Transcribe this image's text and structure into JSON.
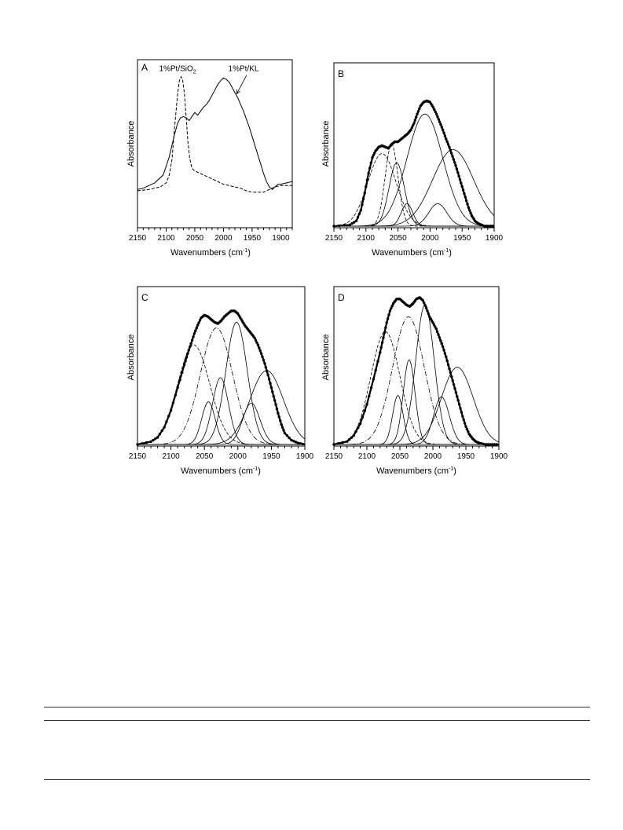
{
  "chart_data": [
    {
      "type": "line",
      "panel": "A",
      "xlabel": "Wavenumbers (cm",
      "xlabel_sup": "-1",
      "xlabel_end": ")",
      "ylabel": "Absorbance",
      "xlim": [
        2150,
        1880
      ],
      "xticks": [
        2150,
        2100,
        2050,
        2000,
        1950,
        1900
      ],
      "xticklabels": [
        "2150",
        "2100",
        "2050",
        "2000",
        "1950",
        "1900"
      ],
      "ylim": [
        0,
        1
      ],
      "annotations": [
        {
          "text": "1%Pt/SiO",
          "sub": "2",
          "x": 2080,
          "y": 1.02
        },
        {
          "text": "1%Pt/KL",
          "x": 1965,
          "y": 1.02,
          "arrow_to": [
            1977,
            0.86
          ]
        }
      ],
      "series": [
        {
          "style": "solid",
          "x": [
            2150,
            2140,
            2120,
            2105,
            2095,
            2085,
            2080,
            2075,
            2070,
            2065,
            2060,
            2055,
            2050,
            2045,
            2040,
            2035,
            2030,
            2025,
            2020,
            2015,
            2010,
            2005,
            2000,
            1995,
            1990,
            1985,
            1980,
            1975,
            1970,
            1965,
            1960,
            1955,
            1950,
            1945,
            1940,
            1935,
            1930,
            1925,
            1920,
            1915,
            1910,
            1905,
            1900,
            1890,
            1880
          ],
          "y": [
            0.14,
            0.15,
            0.19,
            0.25,
            0.38,
            0.56,
            0.64,
            0.68,
            0.69,
            0.68,
            0.66,
            0.69,
            0.72,
            0.7,
            0.73,
            0.76,
            0.78,
            0.81,
            0.85,
            0.89,
            0.93,
            0.96,
            0.98,
            0.97,
            0.95,
            0.91,
            0.87,
            0.83,
            0.78,
            0.73,
            0.67,
            0.61,
            0.54,
            0.47,
            0.4,
            0.33,
            0.26,
            0.2,
            0.16,
            0.14,
            0.16,
            0.18,
            0.18,
            0.19,
            0.2
          ]
        },
        {
          "style": "dashed",
          "x": [
            2150,
            2130,
            2110,
            2100,
            2095,
            2090,
            2085,
            2080,
            2077,
            2074,
            2071,
            2068,
            2065,
            2062,
            2059,
            2055,
            2050,
            2045,
            2040,
            2030,
            2020,
            2010,
            2000,
            1990,
            1980,
            1970,
            1960,
            1950,
            1940,
            1930,
            1920,
            1910,
            1900,
            1890,
            1880
          ],
          "y": [
            0.13,
            0.14,
            0.16,
            0.19,
            0.24,
            0.36,
            0.62,
            0.86,
            0.96,
            0.99,
            0.96,
            0.86,
            0.68,
            0.5,
            0.38,
            0.3,
            0.28,
            0.27,
            0.26,
            0.24,
            0.22,
            0.2,
            0.18,
            0.17,
            0.16,
            0.15,
            0.13,
            0.12,
            0.12,
            0.12,
            0.14,
            0.16,
            0.17,
            0.17,
            0.17
          ]
        }
      ]
    },
    {
      "type": "line",
      "panel": "B",
      "xlabel": "Wavenumbers (cm",
      "xlabel_sup": "-1",
      "xlabel_end": ")",
      "ylabel": "Absorbance",
      "xlim": [
        2150,
        1900
      ],
      "xticks": [
        2150,
        2100,
        2050,
        2000,
        1950,
        1900
      ],
      "xticklabels": [
        "2150",
        "2100",
        "2050",
        "2000",
        "1950",
        "1900"
      ],
      "ylim": [
        0,
        1
      ],
      "fitted_peaks": [
        {
          "style": "dashed",
          "center": 2075,
          "height": 0.55,
          "width": 22
        },
        {
          "style": "dashed",
          "center": 2060,
          "height": 0.62,
          "width": 10
        },
        {
          "style": "solid",
          "center": 2052,
          "height": 0.48,
          "width": 12
        },
        {
          "style": "solid",
          "center": 2036,
          "height": 0.17,
          "width": 9
        },
        {
          "style": "solid",
          "center": 2008,
          "height": 0.85,
          "width": 28
        },
        {
          "style": "solid",
          "center": 1988,
          "height": 0.17,
          "width": 14
        },
        {
          "style": "solid",
          "center": 1964,
          "height": 0.58,
          "width": 32
        }
      ],
      "envelope": {
        "style": "dotted-thick",
        "x": [
          2150,
          2125,
          2115,
          2108,
          2102,
          2096,
          2090,
          2085,
          2080,
          2075,
          2070,
          2065,
          2060,
          2055,
          2050,
          2045,
          2040,
          2035,
          2030,
          2025,
          2020,
          2015,
          2010,
          2005,
          2000,
          1995,
          1990,
          1985,
          1980,
          1975,
          1970,
          1965,
          1960,
          1955,
          1950,
          1945,
          1940,
          1935,
          1930,
          1925,
          1920,
          1915,
          1910,
          1905,
          1900
        ],
        "y": [
          0.0,
          0.01,
          0.04,
          0.12,
          0.25,
          0.4,
          0.52,
          0.57,
          0.6,
          0.61,
          0.6,
          0.59,
          0.62,
          0.64,
          0.64,
          0.66,
          0.68,
          0.7,
          0.73,
          0.78,
          0.85,
          0.91,
          0.94,
          0.95,
          0.94,
          0.9,
          0.85,
          0.79,
          0.73,
          0.66,
          0.6,
          0.53,
          0.46,
          0.38,
          0.3,
          0.22,
          0.14,
          0.08,
          0.04,
          0.02,
          0.01,
          0.0,
          0.0,
          0.0,
          0.0
        ]
      }
    },
    {
      "type": "line",
      "panel": "C",
      "xlabel": "Wavenumbers (cm",
      "xlabel_sup": "-1",
      "xlabel_end": ")",
      "ylabel": "Absorbance",
      "xlim": [
        2150,
        1900
      ],
      "xticks": [
        2150,
        2100,
        2050,
        2000,
        1950,
        1900
      ],
      "xticklabels": [
        "2150",
        "2100",
        "2050",
        "2000",
        "1950",
        "1900"
      ],
      "ylim": [
        0,
        1
      ],
      "fitted_peaks": [
        {
          "style": "dashed",
          "center": 2066,
          "height": 0.7,
          "width": 24
        },
        {
          "style": "dashdot",
          "center": 2032,
          "height": 0.82,
          "width": 24
        },
        {
          "style": "solid",
          "center": 2044,
          "height": 0.3,
          "width": 10
        },
        {
          "style": "solid",
          "center": 2026,
          "height": 0.47,
          "width": 12
        },
        {
          "style": "solid",
          "center": 2002,
          "height": 0.86,
          "width": 16
        },
        {
          "style": "solid",
          "center": 1980,
          "height": 0.29,
          "width": 13
        },
        {
          "style": "solid",
          "center": 1957,
          "height": 0.52,
          "width": 25
        }
      ],
      "envelope": {
        "style": "dotted-thick",
        "x": [
          2150,
          2130,
          2120,
          2110,
          2100,
          2090,
          2080,
          2075,
          2070,
          2065,
          2060,
          2055,
          2050,
          2045,
          2040,
          2035,
          2030,
          2025,
          2020,
          2015,
          2010,
          2005,
          2000,
          1995,
          1990,
          1985,
          1980,
          1975,
          1970,
          1965,
          1960,
          1955,
          1950,
          1945,
          1940,
          1935,
          1930,
          1920,
          1910,
          1900
        ],
        "y": [
          0.0,
          0.02,
          0.05,
          0.12,
          0.24,
          0.4,
          0.56,
          0.64,
          0.71,
          0.78,
          0.84,
          0.89,
          0.91,
          0.9,
          0.88,
          0.86,
          0.85,
          0.87,
          0.9,
          0.92,
          0.94,
          0.94,
          0.92,
          0.88,
          0.84,
          0.81,
          0.78,
          0.75,
          0.7,
          0.64,
          0.57,
          0.49,
          0.4,
          0.31,
          0.22,
          0.14,
          0.08,
          0.03,
          0.01,
          0.0
        ]
      }
    },
    {
      "type": "line",
      "panel": "D",
      "xlabel": "Wavenumbers (cm",
      "xlabel_sup": "-1",
      "xlabel_end": ")",
      "ylabel": "Absorbance",
      "xlim": [
        2150,
        1900
      ],
      "xticks": [
        2150,
        2100,
        2050,
        2000,
        1950,
        1900
      ],
      "xticklabels": [
        "2150",
        "2100",
        "2050",
        "2000",
        "1950",
        "1900"
      ],
      "ylim": [
        0,
        1
      ],
      "fitted_peaks": [
        {
          "style": "dashed",
          "center": 2072,
          "height": 0.76,
          "width": 22
        },
        {
          "style": "dashdot",
          "center": 2037,
          "height": 0.86,
          "width": 24
        },
        {
          "style": "solid",
          "center": 2053,
          "height": 0.33,
          "width": 8
        },
        {
          "style": "solid",
          "center": 2036,
          "height": 0.57,
          "width": 9
        },
        {
          "style": "solid",
          "center": 2012,
          "height": 0.94,
          "width": 14
        },
        {
          "style": "solid",
          "center": 1987,
          "height": 0.32,
          "width": 12
        },
        {
          "style": "solid",
          "center": 1963,
          "height": 0.52,
          "width": 24
        }
      ],
      "envelope": {
        "style": "dotted-thick",
        "x": [
          2150,
          2130,
          2120,
          2110,
          2100,
          2090,
          2080,
          2075,
          2070,
          2065,
          2060,
          2055,
          2050,
          2045,
          2040,
          2035,
          2030,
          2025,
          2020,
          2015,
          2010,
          2005,
          2000,
          1995,
          1990,
          1985,
          1980,
          1975,
          1970,
          1965,
          1960,
          1955,
          1950,
          1945,
          1940,
          1935,
          1930,
          1920,
          1910,
          1900
        ],
        "y": [
          0.0,
          0.02,
          0.06,
          0.14,
          0.27,
          0.44,
          0.62,
          0.72,
          0.82,
          0.9,
          0.95,
          0.98,
          0.98,
          0.96,
          0.94,
          0.93,
          0.95,
          0.98,
          0.99,
          0.97,
          0.92,
          0.86,
          0.82,
          0.78,
          0.72,
          0.66,
          0.59,
          0.51,
          0.43,
          0.35,
          0.27,
          0.19,
          0.12,
          0.07,
          0.04,
          0.02,
          0.01,
          0.0,
          0.0,
          0.0
        ]
      }
    }
  ]
}
